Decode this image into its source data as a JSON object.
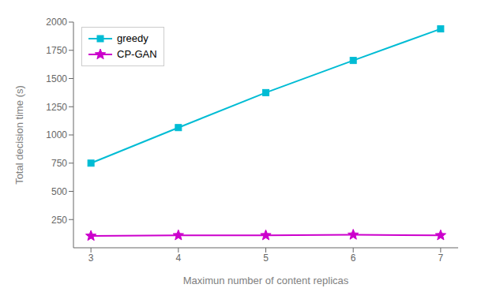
{
  "chart_data": {
    "type": "line",
    "x": [
      3,
      4,
      5,
      6,
      7
    ],
    "series": [
      {
        "name": "greedy",
        "color": "#00bcd4",
        "marker": "square",
        "values": [
          750,
          1065,
          1375,
          1660,
          1940
        ]
      },
      {
        "name": "CP-GAN",
        "color": "#cc00cc",
        "marker": "star",
        "values": [
          105,
          110,
          110,
          115,
          110
        ]
      }
    ],
    "xlabel": "Maximun number of content replicas",
    "ylabel": "Total decision time (s)",
    "xlim": [
      2.8,
      7.2
    ],
    "ylim": [
      0,
      2000
    ],
    "xticks": [
      3,
      4,
      5,
      6,
      7
    ],
    "yticks": [
      250,
      500,
      750,
      1000,
      1250,
      1500,
      1750,
      2000
    ],
    "grid": false,
    "legend": "upper left"
  }
}
